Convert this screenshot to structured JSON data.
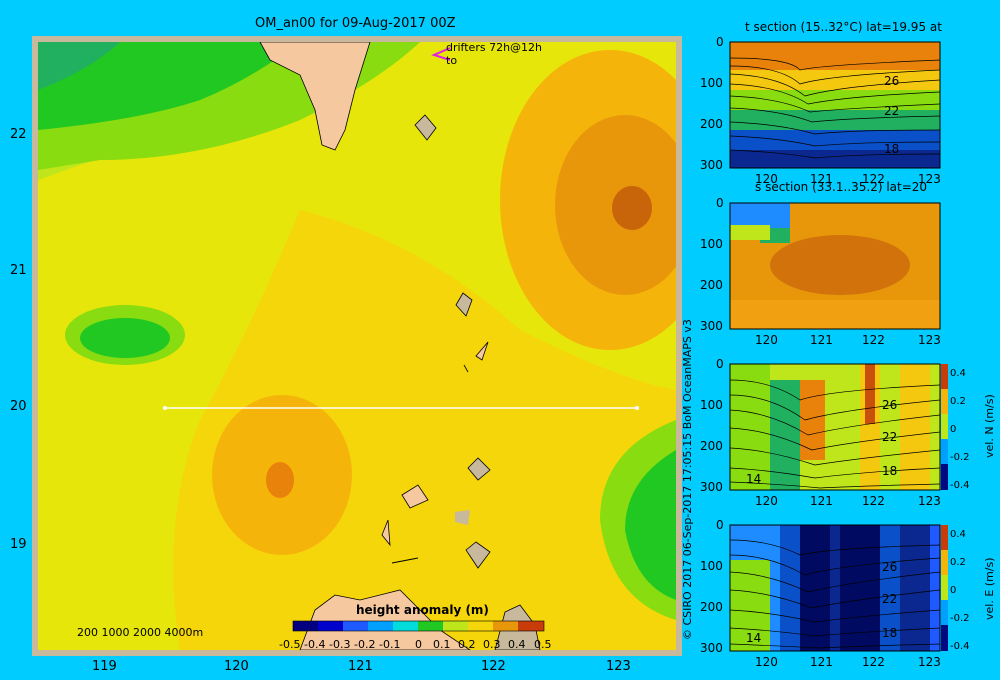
{
  "title": "OM_an00 for 09-Aug-2017 00Z",
  "credit": "© CSIRO 2017   06-Sep-2017 17:05:15 BoM OceanMAPS v3",
  "map": {
    "xticks": [
      "119",
      "120",
      "121",
      "122",
      "123"
    ],
    "yticks": [
      "22",
      "21",
      "20",
      "19"
    ],
    "drifters_line1": "drifters 72h@12h",
    "drifters_line2": "to",
    "depth_legend": "200  1000  2000  4000m",
    "section_lat": 20
  },
  "colorbar": {
    "title": "height anomaly  (m)",
    "ticks": [
      "-0.5",
      "-0.4",
      "-0.3",
      "-0.2",
      "-0.1",
      "0",
      "0.1",
      "0.2",
      "0.3",
      "0.4",
      "0.5"
    ]
  },
  "panels": [
    {
      "title": "t section (15..32°C) lat=19.95 at",
      "contours": [
        "26",
        "22",
        "18"
      ],
      "yticks": [
        "0",
        "100",
        "200",
        "300"
      ],
      "xticks": [
        "120",
        "121",
        "122",
        "123"
      ]
    },
    {
      "title": "s section (33.1..35.2) lat=20",
      "yticks": [
        "0",
        "100",
        "200",
        "300"
      ],
      "xticks": [
        "120",
        "121",
        "122",
        "123"
      ]
    },
    {
      "title": "",
      "contours": [
        "26",
        "22",
        "18",
        "14"
      ],
      "yticks": [
        "0",
        "100",
        "200",
        "300"
      ],
      "xticks": [
        "120",
        "121",
        "122",
        "123"
      ],
      "cbar_label": "vel. N (m/s)",
      "cbar_ticks": [
        "0.4",
        "0.2",
        "0",
        "-0.2",
        "-0.4"
      ]
    },
    {
      "title": "",
      "contours": [
        "26",
        "22",
        "18",
        "14"
      ],
      "yticks": [
        "0",
        "100",
        "200",
        "300"
      ],
      "xticks": [
        "120",
        "121",
        "122",
        "123"
      ],
      "cbar_label": "vel. E (m/s)",
      "cbar_ticks": [
        "0.4",
        "0.2",
        "0",
        "-0.2",
        "-0.4"
      ]
    }
  ],
  "chart_data": {
    "type": "heatmap",
    "title": "OM_an00 for 09-Aug-2017 00Z",
    "xlabel": "",
    "ylabel": "",
    "xlim": [
      118.5,
      123.5
    ],
    "ylim": [
      18.3,
      22.7
    ],
    "colorbar_range": [
      -0.5,
      0.5
    ],
    "section_line": {
      "lat": 20,
      "lon_range": [
        119.5,
        123.2
      ]
    }
  }
}
